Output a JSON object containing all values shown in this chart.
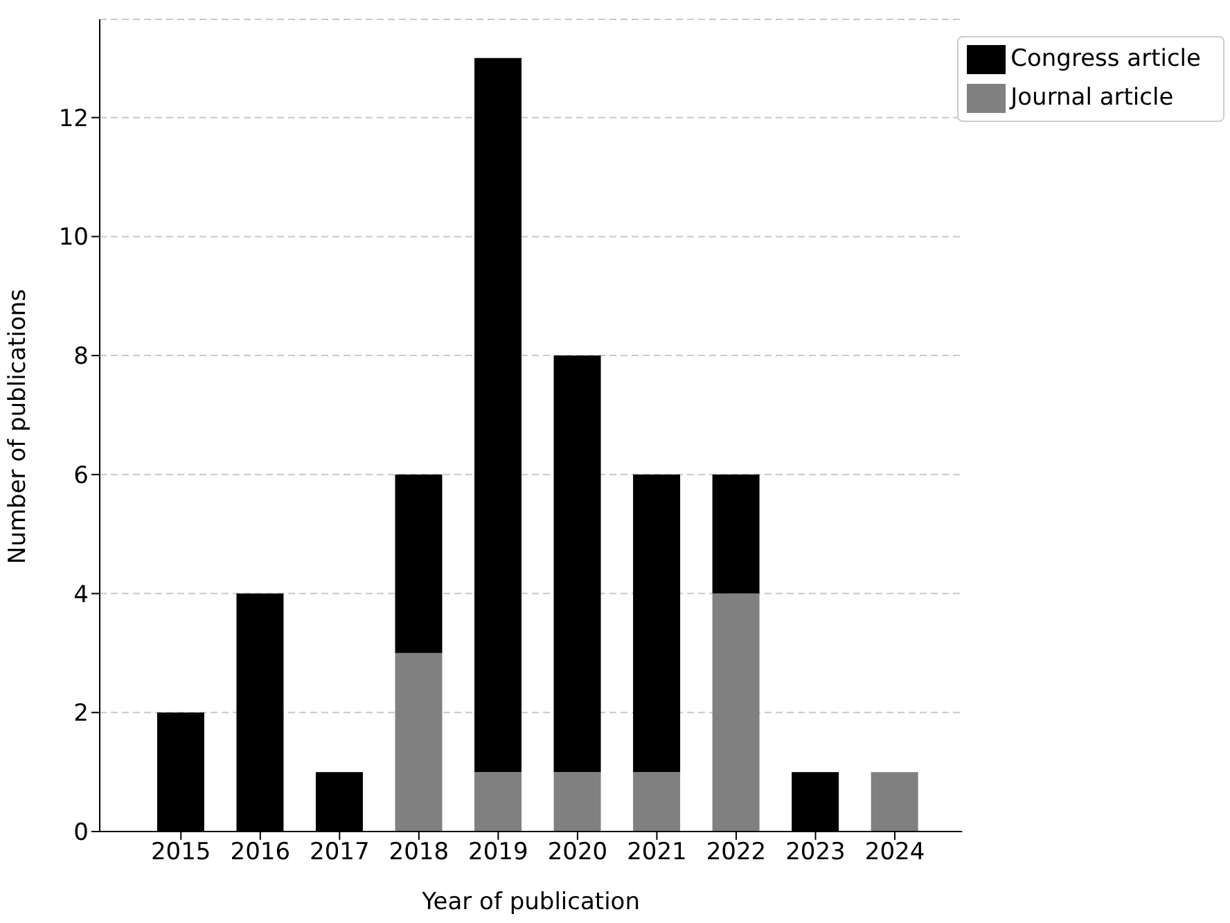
{
  "chart_data": {
    "type": "bar",
    "stacked": true,
    "xlabel": "Year of publication",
    "ylabel": "Number of publications",
    "categories": [
      "2015",
      "2016",
      "2017",
      "2018",
      "2019",
      "2020",
      "2021",
      "2022",
      "2023",
      "2024"
    ],
    "series": [
      {
        "name": "Journal article",
        "color": "#808080",
        "values": [
          0,
          0,
          0,
          3,
          1,
          1,
          1,
          4,
          0,
          1
        ]
      },
      {
        "name": "Congress article",
        "color": "#000000",
        "values": [
          2,
          4,
          1,
          3,
          12,
          7,
          5,
          2,
          1,
          0
        ]
      }
    ],
    "ylim": [
      0,
      13.65
    ],
    "yticks": [
      0,
      2,
      4,
      6,
      8,
      10,
      12
    ],
    "grid": "y",
    "legend": "top right"
  }
}
